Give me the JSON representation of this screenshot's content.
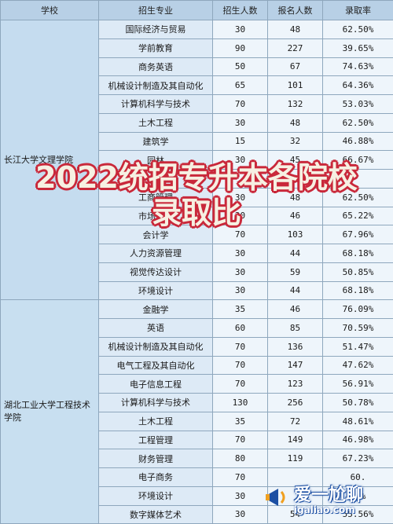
{
  "table": {
    "headers": [
      "学校",
      "招生专业",
      "招生人数",
      "报名人数",
      "录取率"
    ],
    "groups": [
      {
        "school": "长江大学文理学院",
        "rows": [
          [
            "国际经济与贸易",
            "30",
            "48",
            "62.50%"
          ],
          [
            "学前教育",
            "90",
            "227",
            "39.65%"
          ],
          [
            "商务英语",
            "50",
            "67",
            "74.63%"
          ],
          [
            "机械设计制造及其自动化",
            "65",
            "101",
            "64.36%"
          ],
          [
            "计算机科学与技术",
            "70",
            "132",
            "53.03%"
          ],
          [
            "土木工程",
            "30",
            "48",
            "62.50%"
          ],
          [
            "建筑学",
            "15",
            "32",
            "46.88%"
          ],
          [
            "园林",
            "30",
            "45",
            "66.67%"
          ],
          [
            "",
            "",
            "",
            ""
          ],
          [
            "工商管理",
            "30",
            "48",
            "62.50%"
          ],
          [
            "市场营销",
            "30",
            "46",
            "65.22%"
          ],
          [
            "会计学",
            "70",
            "103",
            "67.96%"
          ],
          [
            "人力资源管理",
            "30",
            "44",
            "68.18%"
          ],
          [
            "视觉传达设计",
            "30",
            "59",
            "50.85%"
          ],
          [
            "环境设计",
            "30",
            "44",
            "68.18%"
          ]
        ]
      },
      {
        "school": "湖北工业大学工程技术学院",
        "rows": [
          [
            "金融学",
            "35",
            "46",
            "76.09%"
          ],
          [
            "英语",
            "60",
            "85",
            "70.59%"
          ],
          [
            "机械设计制造及其自动化",
            "70",
            "136",
            "51.47%"
          ],
          [
            "电气工程及其自动化",
            "70",
            "147",
            "47.62%"
          ],
          [
            "电子信息工程",
            "70",
            "123",
            "56.91%"
          ],
          [
            "计算机科学与技术",
            "130",
            "256",
            "50.78%"
          ],
          [
            "土木工程",
            "35",
            "72",
            "48.61%"
          ],
          [
            "工程管理",
            "70",
            "149",
            "46.98%"
          ],
          [
            "财务管理",
            "80",
            "119",
            "67.23%"
          ],
          [
            "电子商务",
            "70",
            "",
            "60."
          ],
          [
            "环境设计",
            "30",
            "",
            "57%"
          ],
          [
            "数字媒体艺术",
            "30",
            "54",
            "55.56%"
          ]
        ]
      }
    ]
  },
  "overlay": {
    "line1": "2022统招专升本各院校",
    "line2": "录取比"
  },
  "watermark": {
    "name": "爱一尬聊",
    "url": "igaliao.com",
    "colors": {
      "blue": "#1c4fa3",
      "orange": "#f0a020"
    }
  },
  "colors": {
    "header_bg": "#b8d0e6",
    "cell_bg": "#eef5fb",
    "title_fill": "#f6f0e2",
    "title_outline": "#c9283a"
  }
}
